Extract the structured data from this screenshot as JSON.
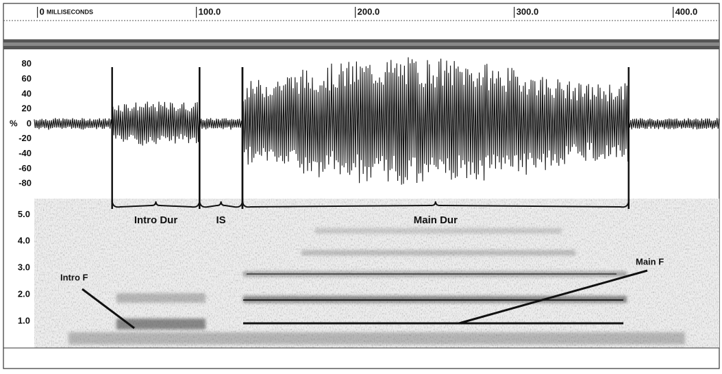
{
  "chart_data": {
    "type": "oscillogram-spectrogram",
    "x_label": "MILLISECONDS",
    "xlim": [
      -2,
      429
    ],
    "xticks": [
      {
        "value": 0,
        "label": "0"
      },
      {
        "value": 100,
        "label": "100.0"
      },
      {
        "value": 200,
        "label": "200.0"
      },
      {
        "value": 300,
        "label": "300.0"
      },
      {
        "value": 400,
        "label": "400.0"
      }
    ],
    "wave": {
      "y_label": "%",
      "ylim": [
        -100,
        100
      ],
      "yticks": [
        80,
        60,
        40,
        20,
        0,
        -20,
        -40,
        -60,
        -80
      ]
    },
    "spectrogram": {
      "ylim": [
        0,
        5.6
      ],
      "yticks": [
        {
          "value": 5,
          "label": "5.0"
        },
        {
          "value": 4,
          "label": "4.0"
        },
        {
          "value": 3,
          "label": "3.0"
        },
        {
          "value": 2,
          "label": "2.0"
        },
        {
          "value": 1,
          "label": "1.0"
        }
      ]
    },
    "segments": [
      {
        "label": "Intro Dur",
        "start": 47,
        "end": 102
      },
      {
        "label": "IS",
        "start": 102,
        "end": 129
      },
      {
        "label": "Main Dur",
        "start": 129,
        "end": 372
      }
    ],
    "annotations": [
      "Intro F",
      "Main F"
    ]
  }
}
